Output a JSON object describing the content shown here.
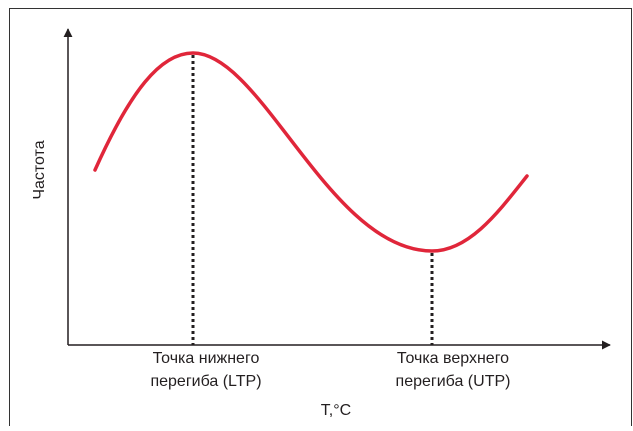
{
  "axes": {
    "y_label": "Частота",
    "x_label": "T,°C"
  },
  "points": [
    {
      "label_lines": [
        "Точка нижнего",
        "перегиба (LTP)"
      ]
    },
    {
      "label_lines": [
        "Точка верхнего",
        "перегиба (UTP)"
      ]
    }
  ]
}
